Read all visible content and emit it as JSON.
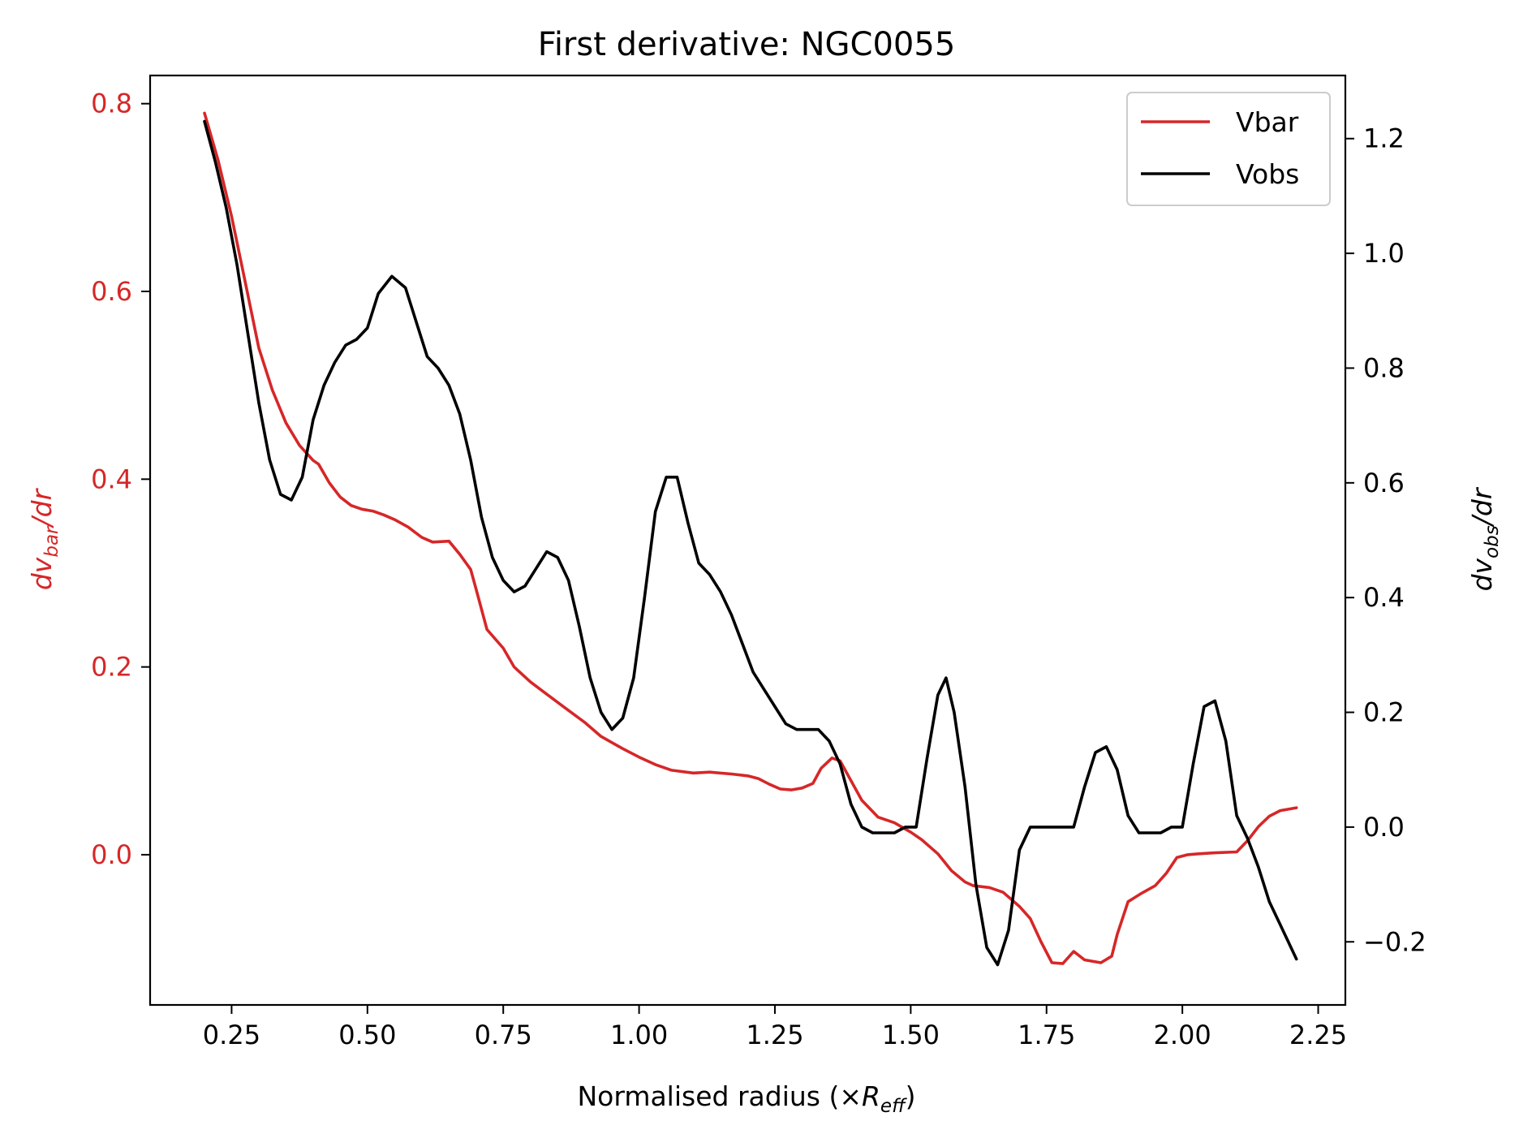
{
  "chart_data": {
    "type": "line",
    "title": "First derivative: NGC0055",
    "xlabel": {
      "main": "Normalised radius (×",
      "var": "R",
      "sub": "eff",
      "close": ")"
    },
    "ylabel_left": {
      "pre": "dv",
      "sub": "bar",
      "post": "/dr"
    },
    "ylabel_right": {
      "pre": "dv",
      "sub": "obs",
      "post": "/dr"
    },
    "xlim": [
      0.1,
      2.3
    ],
    "ylim_left": [
      -0.16,
      0.83
    ],
    "ylim_right": [
      -0.31,
      1.31
    ],
    "xticks": [
      "0.25",
      "0.50",
      "0.75",
      "1.00",
      "1.25",
      "1.50",
      "1.75",
      "2.00",
      "2.25"
    ],
    "yticks_left": [
      "0.0",
      "0.2",
      "0.4",
      "0.6",
      "0.8"
    ],
    "yticks_right": [
      "−0.2",
      "0.0",
      "0.2",
      "0.4",
      "0.6",
      "0.8",
      "1.0",
      "1.2"
    ],
    "legend_position": "top-right",
    "colors": {
      "vbar": "#d62728",
      "vobs": "#000000",
      "left_axis": "#d62728",
      "right_axis": "#000000"
    },
    "series": [
      {
        "name": "Vbar",
        "axis": "left",
        "x": [
          0.2,
          0.225,
          0.25,
          0.275,
          0.3,
          0.325,
          0.35,
          0.375,
          0.4,
          0.41,
          0.43,
          0.45,
          0.47,
          0.49,
          0.51,
          0.53,
          0.55,
          0.575,
          0.6,
          0.62,
          0.65,
          0.67,
          0.69,
          0.7,
          0.72,
          0.75,
          0.77,
          0.8,
          0.83,
          0.86,
          0.9,
          0.93,
          0.97,
          1.0,
          1.03,
          1.06,
          1.1,
          1.13,
          1.17,
          1.2,
          1.22,
          1.24,
          1.26,
          1.28,
          1.3,
          1.32,
          1.335,
          1.355,
          1.37,
          1.39,
          1.41,
          1.44,
          1.47,
          1.5,
          1.52,
          1.55,
          1.575,
          1.6,
          1.615,
          1.645,
          1.67,
          1.7,
          1.72,
          1.74,
          1.76,
          1.78,
          1.8,
          1.82,
          1.85,
          1.87,
          1.88,
          1.9,
          1.925,
          1.95,
          1.97,
          1.99,
          2.01,
          2.03,
          2.06,
          2.1,
          2.12,
          2.14,
          2.16,
          2.18,
          2.21
        ],
        "y": [
          0.79,
          0.74,
          0.68,
          0.61,
          0.54,
          0.495,
          0.46,
          0.436,
          0.42,
          0.416,
          0.396,
          0.381,
          0.372,
          0.368,
          0.366,
          0.362,
          0.357,
          0.349,
          0.338,
          0.333,
          0.334,
          0.32,
          0.304,
          0.283,
          0.24,
          0.22,
          0.2,
          0.184,
          0.171,
          0.158,
          0.141,
          0.126,
          0.113,
          0.104,
          0.096,
          0.09,
          0.087,
          0.088,
          0.086,
          0.084,
          0.081,
          0.075,
          0.07,
          0.069,
          0.071,
          0.076,
          0.092,
          0.103,
          0.1,
          0.079,
          0.058,
          0.04,
          0.034,
          0.024,
          0.016,
          0.001,
          -0.017,
          -0.029,
          -0.033,
          -0.035,
          -0.04,
          -0.055,
          -0.068,
          -0.093,
          -0.115,
          -0.116,
          -0.103,
          -0.112,
          -0.115,
          -0.108,
          -0.085,
          -0.05,
          -0.041,
          -0.033,
          -0.02,
          -0.003,
          0.0,
          0.001,
          0.002,
          0.003,
          0.015,
          0.03,
          0.041,
          0.047,
          0.05
        ]
      },
      {
        "name": "Vobs",
        "axis": "right",
        "x": [
          0.2,
          0.22,
          0.24,
          0.26,
          0.28,
          0.3,
          0.32,
          0.34,
          0.36,
          0.38,
          0.4,
          0.42,
          0.44,
          0.46,
          0.48,
          0.5,
          0.52,
          0.545,
          0.57,
          0.59,
          0.61,
          0.63,
          0.65,
          0.67,
          0.69,
          0.71,
          0.73,
          0.75,
          0.77,
          0.79,
          0.81,
          0.83,
          0.85,
          0.87,
          0.89,
          0.91,
          0.93,
          0.95,
          0.97,
          0.99,
          1.01,
          1.03,
          1.05,
          1.07,
          1.09,
          1.11,
          1.13,
          1.15,
          1.17,
          1.19,
          1.21,
          1.23,
          1.25,
          1.27,
          1.29,
          1.31,
          1.33,
          1.35,
          1.37,
          1.39,
          1.41,
          1.43,
          1.45,
          1.47,
          1.49,
          1.51,
          1.53,
          1.55,
          1.565,
          1.58,
          1.6,
          1.62,
          1.64,
          1.66,
          1.68,
          1.7,
          1.72,
          1.74,
          1.76,
          1.78,
          1.8,
          1.82,
          1.84,
          1.86,
          1.88,
          1.9,
          1.92,
          1.94,
          1.96,
          1.98,
          2.0,
          2.02,
          2.04,
          2.06,
          2.08,
          2.1,
          2.12,
          2.14,
          2.16,
          2.18,
          2.21
        ],
        "y": [
          1.23,
          1.16,
          1.08,
          0.98,
          0.86,
          0.74,
          0.64,
          0.58,
          0.57,
          0.61,
          0.71,
          0.77,
          0.81,
          0.84,
          0.85,
          0.87,
          0.93,
          0.96,
          0.94,
          0.88,
          0.82,
          0.8,
          0.77,
          0.72,
          0.64,
          0.54,
          0.47,
          0.43,
          0.41,
          0.42,
          0.45,
          0.48,
          0.47,
          0.43,
          0.35,
          0.26,
          0.2,
          0.17,
          0.19,
          0.26,
          0.4,
          0.55,
          0.61,
          0.61,
          0.53,
          0.46,
          0.44,
          0.41,
          0.37,
          0.32,
          0.27,
          0.24,
          0.21,
          0.18,
          0.17,
          0.17,
          0.17,
          0.15,
          0.11,
          0.04,
          0.0,
          -0.01,
          -0.01,
          -0.01,
          0.0,
          0.0,
          0.12,
          0.23,
          0.26,
          0.2,
          0.07,
          -0.1,
          -0.21,
          -0.24,
          -0.18,
          -0.04,
          0.0,
          0.0,
          0.0,
          0.0,
          0.0,
          0.07,
          0.13,
          0.14,
          0.1,
          0.02,
          -0.01,
          -0.01,
          -0.01,
          0.0,
          0.0,
          0.11,
          0.21,
          0.22,
          0.15,
          0.02,
          -0.02,
          -0.07,
          -0.13,
          -0.17,
          -0.23
        ]
      }
    ]
  }
}
